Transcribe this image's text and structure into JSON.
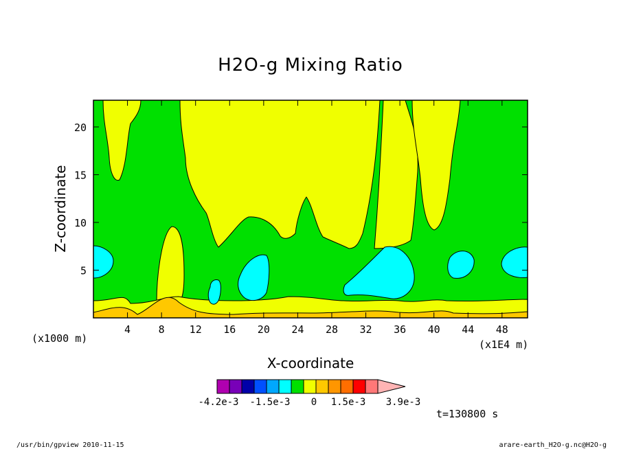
{
  "chart_data": {
    "type": "heatmap",
    "title": "H2O-g Mixing Ratio",
    "xlabel": "X-coordinate",
    "ylabel": "Z-coordinate",
    "x_scale_label": "(x1E4 m)",
    "y_scale_label": "(x1000 m)",
    "xlim": [
      0,
      51
    ],
    "ylim": [
      0,
      22.8
    ],
    "x_ticks": [
      "4",
      "8",
      "12",
      "16",
      "20",
      "24",
      "28",
      "32",
      "36",
      "40",
      "44",
      "48"
    ],
    "y_ticks": [
      "5",
      "10",
      "15",
      "20"
    ],
    "colorbar": {
      "colors": [
        "#b000b0",
        "#7800b8",
        "#0000a8",
        "#0050ff",
        "#00a8ff",
        "#00ffff",
        "#00e000",
        "#f0ff00",
        "#ffc800",
        "#ff9600",
        "#ff6e00",
        "#ff0000",
        "#ff7878",
        "#ffb4b4"
      ],
      "tick_labels": [
        "-4.2e-3",
        "-1.5e-3",
        "0",
        "1.5e-3",
        "3.9e-3"
      ]
    },
    "fill_colors": {
      "green": "#00e000",
      "yellow": "#f0ff00",
      "cyan": "#00ffff",
      "orange": "#ffc800"
    },
    "time_label": "t=130800 s"
  },
  "footer": {
    "left": "/usr/bin/gpview  2010-11-15",
    "right": "arare-earth_H2O-g.nc@H2O-g"
  }
}
